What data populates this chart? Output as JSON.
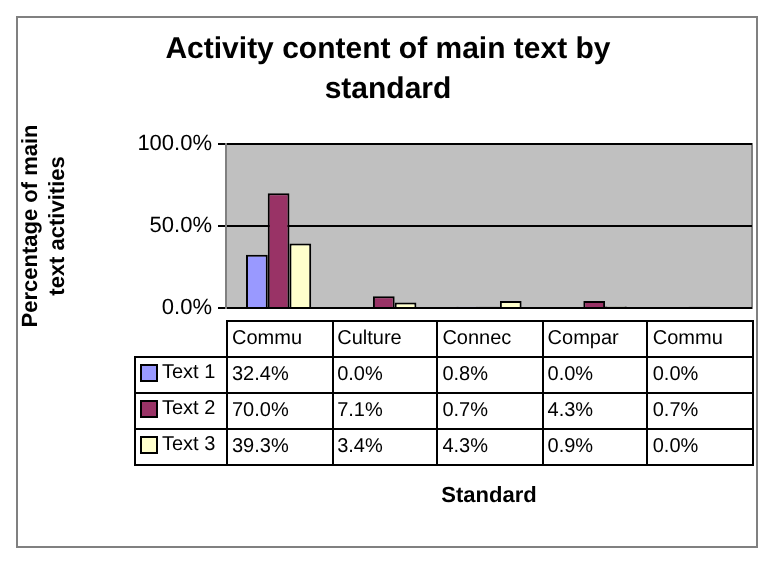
{
  "chart_data": {
    "type": "bar",
    "title": "Activity content of main text by standard",
    "annotations": [
      "Standard"
    ],
    "ylabel": "Percentage of main text activities",
    "categories": [
      "Commu",
      "Culture",
      "Connec",
      "Compar",
      "Commu"
    ],
    "series": [
      {
        "name": "Text 1",
        "color": "#9999ff",
        "values": [
          32.4,
          0.0,
          0.8,
          0.0,
          0.0
        ],
        "value_labels": [
          "32.4%",
          "0.0%",
          "0.8%",
          "0.0%",
          "0.0%"
        ]
      },
      {
        "name": "Text 2",
        "color": "#993366",
        "values": [
          70.0,
          7.1,
          0.7,
          4.3,
          0.7
        ],
        "value_labels": [
          "70.0%",
          "7.1%",
          "0.7%",
          "4.3%",
          "0.7%"
        ]
      },
      {
        "name": "Text 3",
        "color": "#ffffcc",
        "values": [
          39.3,
          3.4,
          4.3,
          0.9,
          0.0
        ],
        "value_labels": [
          "39.3%",
          "3.4%",
          "4.3%",
          "0.9%",
          "0.0%"
        ]
      }
    ],
    "ylim": [
      0,
      100
    ],
    "yticks": [
      {
        "value": 0,
        "label": "0.0%"
      },
      {
        "value": 50,
        "label": "50.0%"
      },
      {
        "value": 100,
        "label": "100.0%"
      }
    ],
    "grid": "y",
    "legend": "bottom"
  }
}
